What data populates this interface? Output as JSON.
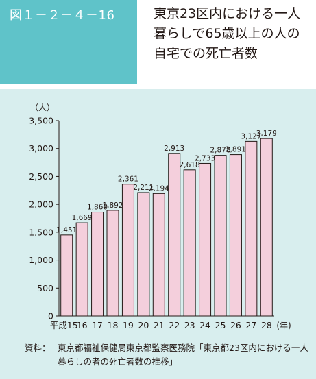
{
  "figure_label": "図１－２－４－16",
  "title": "東京23区内における一人暮らしで65歳以上の人の自宅での死亡者数",
  "source": {
    "label": "資料：",
    "text": "東京都福祉保健局東京都監察医務院「東京都23区内における一人暮らしの者の死亡者数の推移」"
  },
  "colors": {
    "header": "#5fc3c9",
    "panel": "#d8eeee",
    "bar": "#f4cfdc",
    "bar_edge": "#231815"
  },
  "chart_data": {
    "type": "bar",
    "ylabel": "（人）",
    "xunit": "(年)",
    "ylim": [
      0,
      3500
    ],
    "yticks": [
      0,
      500,
      1000,
      1500,
      2000,
      2500,
      3000,
      3500
    ],
    "ytick_labels": [
      "0",
      "500",
      "1,000",
      "1,500",
      "2,000",
      "2,500",
      "3,000",
      "3,500"
    ],
    "categories": [
      "平成15",
      "16",
      "17",
      "18",
      "19",
      "20",
      "21",
      "22",
      "23",
      "24",
      "25",
      "26",
      "27",
      "28"
    ],
    "values": [
      1451,
      1669,
      1860,
      1892,
      2361,
      2211,
      2194,
      2913,
      2618,
      2733,
      2878,
      2891,
      3127,
      3179
    ],
    "value_labels": [
      "1,451",
      "1,669",
      "1,860",
      "1,892",
      "2,361",
      "2,211",
      "2,194",
      "2,913",
      "2,618",
      "2,733",
      "2,878",
      "2,891",
      "3,127",
      "3,179"
    ],
    "grid": false,
    "legend": false
  }
}
